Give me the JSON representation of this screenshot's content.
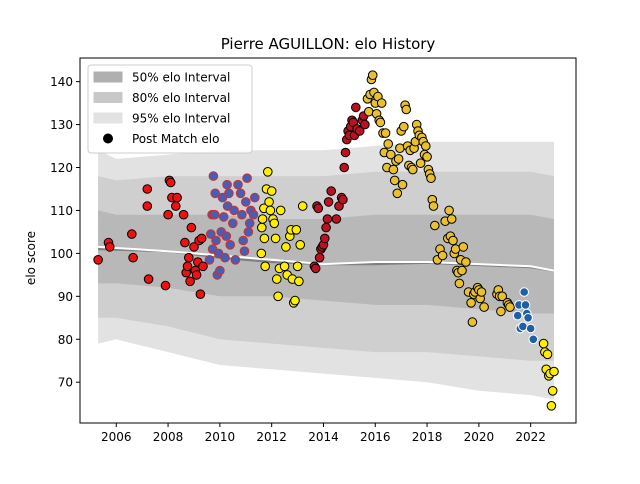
{
  "chart_data": {
    "type": "scatter",
    "title": "Pierre AGUILLON: elo History",
    "xlabel": "",
    "ylabel": "elo score",
    "xlim": [
      2004.6,
      2023.75
    ],
    "ylim": [
      60.5,
      145.5
    ],
    "x_ticks": [
      2006,
      2008,
      2010,
      2012,
      2014,
      2016,
      2018,
      2020,
      2022
    ],
    "y_ticks": [
      70,
      80,
      90,
      100,
      110,
      120,
      130,
      140
    ],
    "legend_position": "top-left",
    "legend": [
      {
        "label": "50% elo Interval",
        "color": "#b0b0b0"
      },
      {
        "label": "80% elo Interval",
        "color": "#c8c8c8"
      },
      {
        "label": "95% elo Interval",
        "color": "#e2e2e2"
      },
      {
        "label": "Post Match elo",
        "color": "#000000"
      }
    ],
    "bands": {
      "x": [
        2005.3,
        2006,
        2008,
        2010,
        2012,
        2014,
        2016,
        2018,
        2020,
        2022,
        2022.9
      ],
      "mean": [
        101.5,
        101,
        100.5,
        99.5,
        98.5,
        97.5,
        98,
        98,
        97.5,
        97,
        96
      ],
      "p95": [
        [
          79,
          124
        ],
        [
          80,
          122
        ],
        [
          77,
          123
        ],
        [
          74,
          124
        ],
        [
          73,
          124
        ],
        [
          72,
          124
        ],
        [
          71,
          125
        ],
        [
          70,
          126
        ],
        [
          68,
          126
        ],
        [
          67,
          126
        ],
        [
          66,
          126
        ]
      ],
      "p80": [
        [
          85,
          118
        ],
        [
          85,
          117
        ],
        [
          83,
          118
        ],
        [
          80,
          118
        ],
        [
          79,
          118
        ],
        [
          78,
          118
        ],
        [
          77,
          119
        ],
        [
          77,
          119
        ],
        [
          76,
          119
        ],
        [
          75,
          119
        ],
        [
          75,
          118
        ]
      ],
      "p50": [
        [
          93,
          110
        ],
        [
          93,
          109
        ],
        [
          92,
          109
        ],
        [
          90,
          109
        ],
        [
          90,
          108
        ],
        [
          89,
          108
        ],
        [
          88,
          109
        ],
        [
          88,
          109
        ],
        [
          87,
          109
        ],
        [
          86,
          109
        ],
        [
          86,
          108
        ]
      ]
    },
    "mean_line": {
      "white": {
        "x": [
          2005.3,
          2008,
          2010,
          2012,
          2014,
          2016,
          2018,
          2020,
          2022,
          2022.9
        ],
        "y": [
          101.5,
          100.5,
          99.5,
          98.5,
          97.5,
          98,
          98,
          97.5,
          97,
          96
        ]
      },
      "gray": {
        "x": [
          2005.3,
          2008,
          2010,
          2012,
          2014,
          2016,
          2018,
          2020,
          2022,
          2022.9
        ],
        "y": [
          101,
          100.5,
          99,
          98,
          97.5,
          97.5,
          97.8,
          97.3,
          96.8,
          96
        ]
      }
    },
    "series": [
      {
        "color": "#ee1111",
        "points": [
          [
            2005.3,
            98.5
          ],
          [
            2005.7,
            102.5
          ],
          [
            2005.75,
            101.5
          ],
          [
            2006.6,
            104.5
          ],
          [
            2006.65,
            99
          ],
          [
            2007.2,
            115
          ],
          [
            2007.2,
            111
          ],
          [
            2007.25,
            94
          ],
          [
            2007.9,
            92.5
          ],
          [
            2008.0,
            109
          ],
          [
            2008.05,
            117
          ],
          [
            2008.1,
            116.5
          ],
          [
            2008.15,
            113
          ],
          [
            2008.3,
            111
          ],
          [
            2008.35,
            113
          ],
          [
            2008.6,
            109
          ],
          [
            2008.65,
            102.5
          ],
          [
            2008.7,
            95.5
          ],
          [
            2008.75,
            97
          ],
          [
            2008.8,
            99
          ],
          [
            2008.85,
            93.5
          ],
          [
            2008.9,
            106
          ],
          [
            2009.0,
            101.5
          ],
          [
            2009.05,
            96
          ],
          [
            2009.1,
            95
          ],
          [
            2009.15,
            98
          ],
          [
            2009.2,
            103
          ],
          [
            2009.25,
            90.5
          ],
          [
            2009.3,
            103.5
          ],
          [
            2009.35,
            97
          ]
        ]
      },
      {
        "color": "#4a5db5",
        "edge": "#c83030",
        "points": [
          [
            2009.6,
            98.5
          ],
          [
            2009.65,
            104.5
          ],
          [
            2009.7,
            109
          ],
          [
            2009.72,
            101
          ],
          [
            2009.75,
            118
          ],
          [
            2009.8,
            109
          ],
          [
            2009.82,
            114
          ],
          [
            2009.85,
            103
          ],
          [
            2009.9,
            95
          ],
          [
            2009.95,
            100
          ],
          [
            2010.0,
            96
          ],
          [
            2010.05,
            105
          ],
          [
            2010.1,
            113
          ],
          [
            2010.15,
            108.5
          ],
          [
            2010.2,
            99
          ],
          [
            2010.25,
            104
          ],
          [
            2010.28,
            116
          ],
          [
            2010.3,
            111
          ],
          [
            2010.35,
            114
          ],
          [
            2010.4,
            102
          ],
          [
            2010.5,
            107
          ],
          [
            2010.55,
            110
          ],
          [
            2010.6,
            98.5
          ],
          [
            2010.7,
            116
          ],
          [
            2010.8,
            114
          ],
          [
            2010.85,
            109
          ],
          [
            2010.9,
            103
          ],
          [
            2010.95,
            100.5
          ],
          [
            2011.0,
            112
          ],
          [
            2011.05,
            117.5
          ],
          [
            2011.1,
            105
          ],
          [
            2011.15,
            107
          ],
          [
            2011.2,
            110
          ],
          [
            2011.3,
            109
          ],
          [
            2011.35,
            113
          ]
        ]
      },
      {
        "color": "#ffee00",
        "points": [
          [
            2011.6,
            100
          ],
          [
            2011.62,
            106
          ],
          [
            2011.65,
            108
          ],
          [
            2011.7,
            110.5
          ],
          [
            2011.72,
            103.5
          ],
          [
            2011.75,
            97
          ],
          [
            2011.8,
            115
          ],
          [
            2011.85,
            119
          ],
          [
            2011.9,
            112
          ],
          [
            2011.95,
            110
          ],
          [
            2012.0,
            114.5
          ],
          [
            2012.05,
            108
          ],
          [
            2012.1,
            107
          ],
          [
            2012.15,
            103.5
          ],
          [
            2012.2,
            94
          ],
          [
            2012.25,
            90
          ],
          [
            2012.3,
            96.5
          ],
          [
            2012.35,
            110
          ],
          [
            2012.5,
            97
          ],
          [
            2012.55,
            101.5
          ],
          [
            2012.6,
            95
          ],
          [
            2012.7,
            104
          ],
          [
            2012.75,
            105.5
          ],
          [
            2012.8,
            94
          ],
          [
            2012.85,
            88.5
          ],
          [
            2012.9,
            89
          ],
          [
            2012.95,
            105.5
          ],
          [
            2013.0,
            97
          ],
          [
            2013.05,
            93.5
          ],
          [
            2013.1,
            102
          ],
          [
            2013.2,
            111
          ]
        ]
      },
      {
        "color": "#bb1122",
        "points": [
          [
            2013.65,
            97
          ],
          [
            2013.7,
            96.5
          ],
          [
            2013.75,
            111
          ],
          [
            2013.8,
            110.5
          ],
          [
            2013.85,
            99
          ],
          [
            2013.9,
            101
          ],
          [
            2013.95,
            101.5
          ],
          [
            2014.0,
            102
          ],
          [
            2014.05,
            103.5
          ],
          [
            2014.1,
            106
          ],
          [
            2014.15,
            108
          ],
          [
            2014.2,
            112
          ],
          [
            2014.3,
            114.5
          ],
          [
            2014.5,
            108
          ],
          [
            2014.6,
            111
          ],
          [
            2014.7,
            113
          ],
          [
            2014.75,
            112.5
          ],
          [
            2014.8,
            120
          ],
          [
            2014.85,
            123.5
          ],
          [
            2014.9,
            126.5
          ],
          [
            2014.95,
            128.5
          ],
          [
            2015.0,
            127.5
          ],
          [
            2015.05,
            129.5
          ],
          [
            2015.1,
            131
          ],
          [
            2015.15,
            130.5
          ],
          [
            2015.2,
            127.5
          ],
          [
            2015.25,
            134
          ],
          [
            2015.3,
            129
          ],
          [
            2015.4,
            128.5
          ],
          [
            2015.5,
            131
          ],
          [
            2015.55,
            132
          ],
          [
            2015.6,
            130
          ]
        ]
      },
      {
        "color": "#e8c030",
        "points": [
          [
            2015.7,
            136
          ],
          [
            2015.75,
            133
          ],
          [
            2015.8,
            137
          ],
          [
            2015.85,
            140.5
          ],
          [
            2015.9,
            141.5
          ],
          [
            2015.95,
            137.5
          ],
          [
            2016.0,
            135
          ],
          [
            2016.05,
            132.5
          ],
          [
            2016.1,
            136.5
          ],
          [
            2016.15,
            131
          ],
          [
            2016.2,
            130.5
          ],
          [
            2016.25,
            135
          ],
          [
            2016.3,
            128
          ],
          [
            2016.35,
            123.5
          ],
          [
            2016.4,
            128
          ],
          [
            2016.45,
            120
          ],
          [
            2016.5,
            125.5
          ],
          [
            2016.6,
            123
          ],
          [
            2016.7,
            119.5
          ],
          [
            2016.75,
            117
          ],
          [
            2016.8,
            121.5
          ],
          [
            2016.85,
            114
          ],
          [
            2016.9,
            122
          ],
          [
            2016.95,
            124.5
          ],
          [
            2017.0,
            128.5
          ],
          [
            2017.05,
            116
          ],
          [
            2017.1,
            129.5
          ],
          [
            2017.15,
            134.5
          ],
          [
            2017.2,
            133.5
          ],
          [
            2017.25,
            125
          ],
          [
            2017.3,
            120.5
          ],
          [
            2017.35,
            124
          ],
          [
            2017.4,
            120
          ],
          [
            2017.45,
            119.5
          ],
          [
            2017.5,
            124.5
          ],
          [
            2017.55,
            126
          ],
          [
            2017.6,
            130
          ],
          [
            2017.65,
            128.5
          ],
          [
            2017.7,
            127.5
          ],
          [
            2017.75,
            121
          ],
          [
            2017.8,
            127
          ],
          [
            2017.85,
            126
          ],
          [
            2017.9,
            123
          ],
          [
            2017.95,
            125
          ],
          [
            2018.0,
            122.5
          ],
          [
            2018.05,
            119.5
          ],
          [
            2018.1,
            118.5
          ],
          [
            2018.15,
            117.5
          ],
          [
            2018.2,
            112.5
          ],
          [
            2018.25,
            111
          ],
          [
            2018.3,
            106.5
          ],
          [
            2018.4,
            98.5
          ],
          [
            2018.5,
            101
          ],
          [
            2018.6,
            99.5
          ],
          [
            2018.7,
            107.5
          ],
          [
            2018.8,
            103.5
          ],
          [
            2018.85,
            110
          ],
          [
            2018.9,
            104
          ],
          [
            2018.95,
            108
          ],
          [
            2019.0,
            103
          ],
          [
            2019.05,
            100
          ],
          [
            2019.1,
            101
          ],
          [
            2019.15,
            96
          ],
          [
            2019.2,
            95.5
          ],
          [
            2019.25,
            93
          ],
          [
            2019.3,
            98.5
          ],
          [
            2019.35,
            96
          ],
          [
            2019.4,
            101.5
          ],
          [
            2019.5,
            98
          ],
          [
            2019.6,
            91
          ],
          [
            2019.7,
            88.5
          ],
          [
            2019.75,
            84
          ],
          [
            2019.8,
            90.5
          ],
          [
            2019.85,
            91
          ],
          [
            2019.95,
            92
          ],
          [
            2020.0,
            91.5
          ],
          [
            2020.05,
            89.5
          ],
          [
            2020.1,
            91
          ],
          [
            2020.2,
            87.5
          ],
          [
            2020.7,
            90.5
          ],
          [
            2020.75,
            91.5
          ],
          [
            2020.8,
            90
          ],
          [
            2020.85,
            86.5
          ],
          [
            2020.9,
            90
          ],
          [
            2021.1,
            88.5
          ],
          [
            2021.15,
            88
          ],
          [
            2021.2,
            87.5
          ]
        ]
      },
      {
        "color": "#1f5fa8",
        "edge": "#ffffff",
        "points": [
          [
            2021.5,
            85.5
          ],
          [
            2021.55,
            88
          ],
          [
            2021.6,
            82.5
          ],
          [
            2021.7,
            83
          ],
          [
            2021.75,
            91
          ],
          [
            2021.8,
            88
          ],
          [
            2021.85,
            86
          ],
          [
            2021.9,
            85
          ],
          [
            2022.0,
            82.5
          ],
          [
            2022.1,
            80
          ]
        ]
      },
      {
        "color": "#ffee00",
        "points": [
          [
            2022.5,
            79
          ],
          [
            2022.55,
            77
          ],
          [
            2022.6,
            73
          ],
          [
            2022.65,
            76.5
          ],
          [
            2022.7,
            71.5
          ],
          [
            2022.75,
            72
          ],
          [
            2022.8,
            64.5
          ],
          [
            2022.85,
            68
          ],
          [
            2022.9,
            72.5
          ]
        ]
      }
    ]
  }
}
